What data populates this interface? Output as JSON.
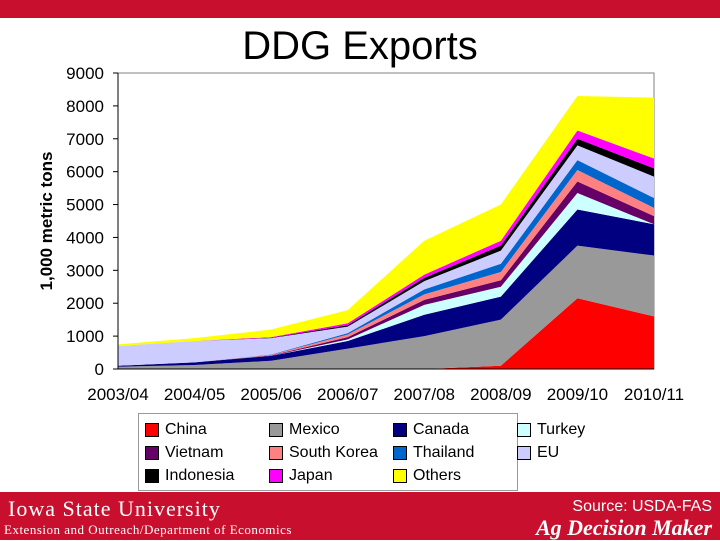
{
  "page": {
    "title": "DDG Exports",
    "footer": {
      "university": "Iowa State University",
      "department": "Extension and Outreach/Department of Economics",
      "source": "Source: USDA-FAS",
      "brand": "Ag Decision Maker"
    }
  },
  "colors": {
    "header_red": "#c8102e"
  },
  "chart_data": {
    "type": "area",
    "stacked": true,
    "title": "DDG Exports",
    "ylabel": "1,000 metric tons",
    "xlabel": "",
    "ylim": [
      0,
      9000
    ],
    "yticks": [
      0,
      1000,
      2000,
      3000,
      4000,
      5000,
      6000,
      7000,
      8000,
      9000
    ],
    "categories": [
      "2003/04",
      "2004/05",
      "2005/06",
      "2006/07",
      "2007/08",
      "2008/09",
      "2009/10",
      "2010/11"
    ],
    "legend_position": "bottom",
    "series": [
      {
        "name": "China",
        "color": "#ff0000",
        "values": [
          0,
          0,
          0,
          0,
          0,
          100,
          2150,
          1600
        ]
      },
      {
        "name": "Mexico",
        "color": "#999999",
        "values": [
          70,
          120,
          250,
          620,
          1000,
          1400,
          1600,
          1850
        ]
      },
      {
        "name": "Canada",
        "color": "#000080",
        "values": [
          30,
          80,
          150,
          230,
          650,
          700,
          1100,
          950
        ]
      },
      {
        "name": "Turkey",
        "color": "#ccffff",
        "values": [
          0,
          0,
          0,
          50,
          300,
          300,
          500,
          0
        ]
      },
      {
        "name": "Vietnam",
        "color": "#660066",
        "values": [
          0,
          0,
          10,
          70,
          150,
          200,
          350,
          250
        ]
      },
      {
        "name": "South Korea",
        "color": "#ff8080",
        "values": [
          0,
          0,
          20,
          80,
          170,
          250,
          350,
          250
        ]
      },
      {
        "name": "Thailand",
        "color": "#0066cc",
        "values": [
          0,
          0,
          10,
          40,
          150,
          250,
          300,
          300
        ]
      },
      {
        "name": "EU",
        "color": "#ccccff",
        "values": [
          600,
          650,
          500,
          200,
          250,
          400,
          450,
          650
        ]
      },
      {
        "name": "Indonesia",
        "color": "#000000",
        "values": [
          0,
          0,
          10,
          40,
          100,
          150,
          200,
          250
        ]
      },
      {
        "name": "Japan",
        "color": "#ff00ff",
        "values": [
          0,
          0,
          20,
          60,
          100,
          150,
          250,
          300
        ]
      },
      {
        "name": "Others",
        "color": "#ffff00",
        "values": [
          50,
          90,
          230,
          400,
          1030,
          1100,
          1050,
          1850
        ]
      }
    ]
  }
}
